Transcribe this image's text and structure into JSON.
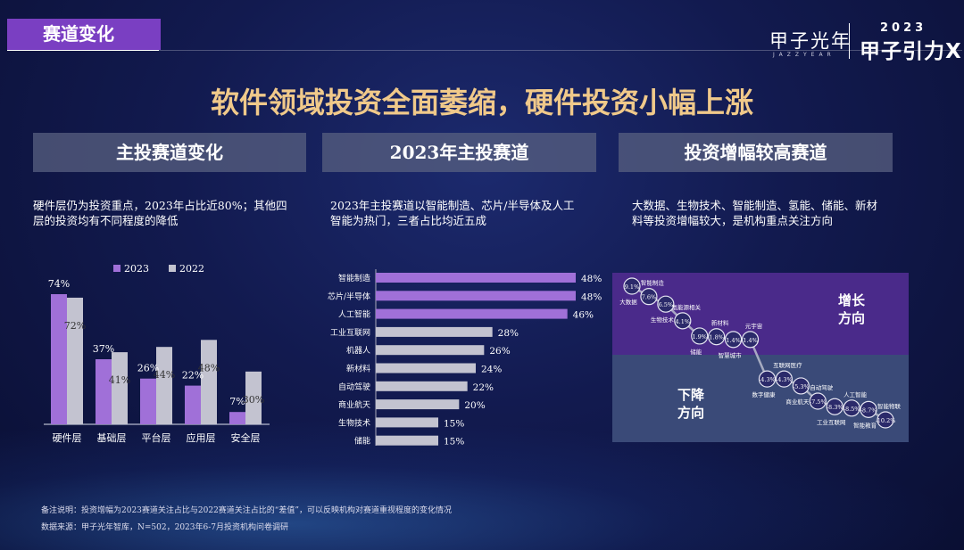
{
  "header": {
    "section_tag": "赛道变化",
    "brand_name": "甲子光年",
    "brand_sub": "JAZZYEAR",
    "brand_year": "2023",
    "brand_slogan": "甲子引力X"
  },
  "title": "软件领域投资全面萎缩，硬件投资小幅上涨",
  "panels": [
    {
      "heading": "主投赛道变化",
      "description": "硬件层仍为投资重点，2023年占比近80%；其他四层的投资均有不同程度的降低"
    },
    {
      "heading": "2023年主投赛道",
      "description": "2023年主投赛道以智能制造、芯片/半导体及人工智能为热门，三者占比均近五成"
    },
    {
      "heading": "投资增幅较高赛道",
      "description": "大数据、生物技术、智能制造、氢能、储能、新材料等投资增幅较大，是机构重点关注方向"
    }
  ],
  "chart_data": [
    {
      "type": "bar",
      "categories": [
        "硬件层",
        "基础层",
        "平台层",
        "应用层",
        "安全层"
      ],
      "series": [
        {
          "name": "2023",
          "values": [
            74,
            37,
            26,
            22,
            7
          ],
          "labels": [
            "74%",
            "37%",
            "26%",
            "22%",
            "7%"
          ],
          "color": "#a070d8"
        },
        {
          "name": "2022",
          "values": [
            72,
            41,
            44,
            48,
            30
          ],
          "labels": [
            "72%",
            "41%",
            "44%",
            "48%",
            "30%"
          ],
          "color": "#c3c3d0"
        }
      ],
      "ylim": [
        0,
        80
      ],
      "legend": "top"
    },
    {
      "type": "bar",
      "orientation": "horizontal",
      "categories": [
        "智能制造",
        "芯片/半导体",
        "人工智能",
        "工业互联网",
        "机器人",
        "新材料",
        "自动驾驶",
        "商业航天",
        "生物技术",
        "储能"
      ],
      "values": [
        48,
        48,
        46,
        28,
        26,
        24,
        22,
        20,
        15,
        15
      ],
      "labels": [
        "48%",
        "48%",
        "46%",
        "28%",
        "26%",
        "24%",
        "22%",
        "20%",
        "15%",
        "15%"
      ],
      "highlight_top": 3,
      "colors": {
        "highlight": "#a070d8",
        "normal": "#c3c3d0"
      },
      "xlim": [
        0,
        50
      ]
    },
    {
      "type": "scatter",
      "zones": {
        "up": "增长\n方向",
        "down": "下降\n方向"
      },
      "points": [
        {
          "name": "大数据",
          "value": 9.1,
          "label": "9.1%"
        },
        {
          "name": "智能制造",
          "value": 7.6,
          "label": "7.6%"
        },
        {
          "name": "生物技术",
          "value": 6.5,
          "label": "6.5%"
        },
        {
          "name": "氢能源相关",
          "value": 4.1,
          "label": "4.1%"
        },
        {
          "name": "储能",
          "value": 1.9,
          "label": "1.9%"
        },
        {
          "name": "新材料",
          "value": 1.8,
          "label": "1.8%"
        },
        {
          "name": "智慧城市",
          "value": 1.4,
          "label": "1.4%"
        },
        {
          "name": "元宇宙",
          "value": 1.4,
          "label": "1.4%"
        },
        {
          "name": "数字健康",
          "value": -4.3,
          "label": "-4.3%"
        },
        {
          "name": "互联网医疗",
          "value": -4.3,
          "label": "-4.3%"
        },
        {
          "name": "商业航天",
          "value": -5.3,
          "label": "-5.3%"
        },
        {
          "name": "自动驾驶",
          "value": -7.5,
          "label": "-7.5%"
        },
        {
          "name": "工业互联网",
          "value": -8.3,
          "label": "-8.3%"
        },
        {
          "name": "人工智能",
          "value": -8.5,
          "label": "-8.5%"
        },
        {
          "name": "智能教育",
          "value": -8.7,
          "label": "-8.7%"
        },
        {
          "name": "智能物联",
          "value": -10.2,
          "label": "-10.2%"
        }
      ]
    }
  ],
  "footnotes": [
    "备注说明：投资增幅为2023赛道关注占比与2022赛道关注占比的“差值”，可以反映机构对赛道重视程度的变化情况",
    "数据来源：甲子光年智库，N=502，2023年6-7月投资机构问卷调研"
  ]
}
